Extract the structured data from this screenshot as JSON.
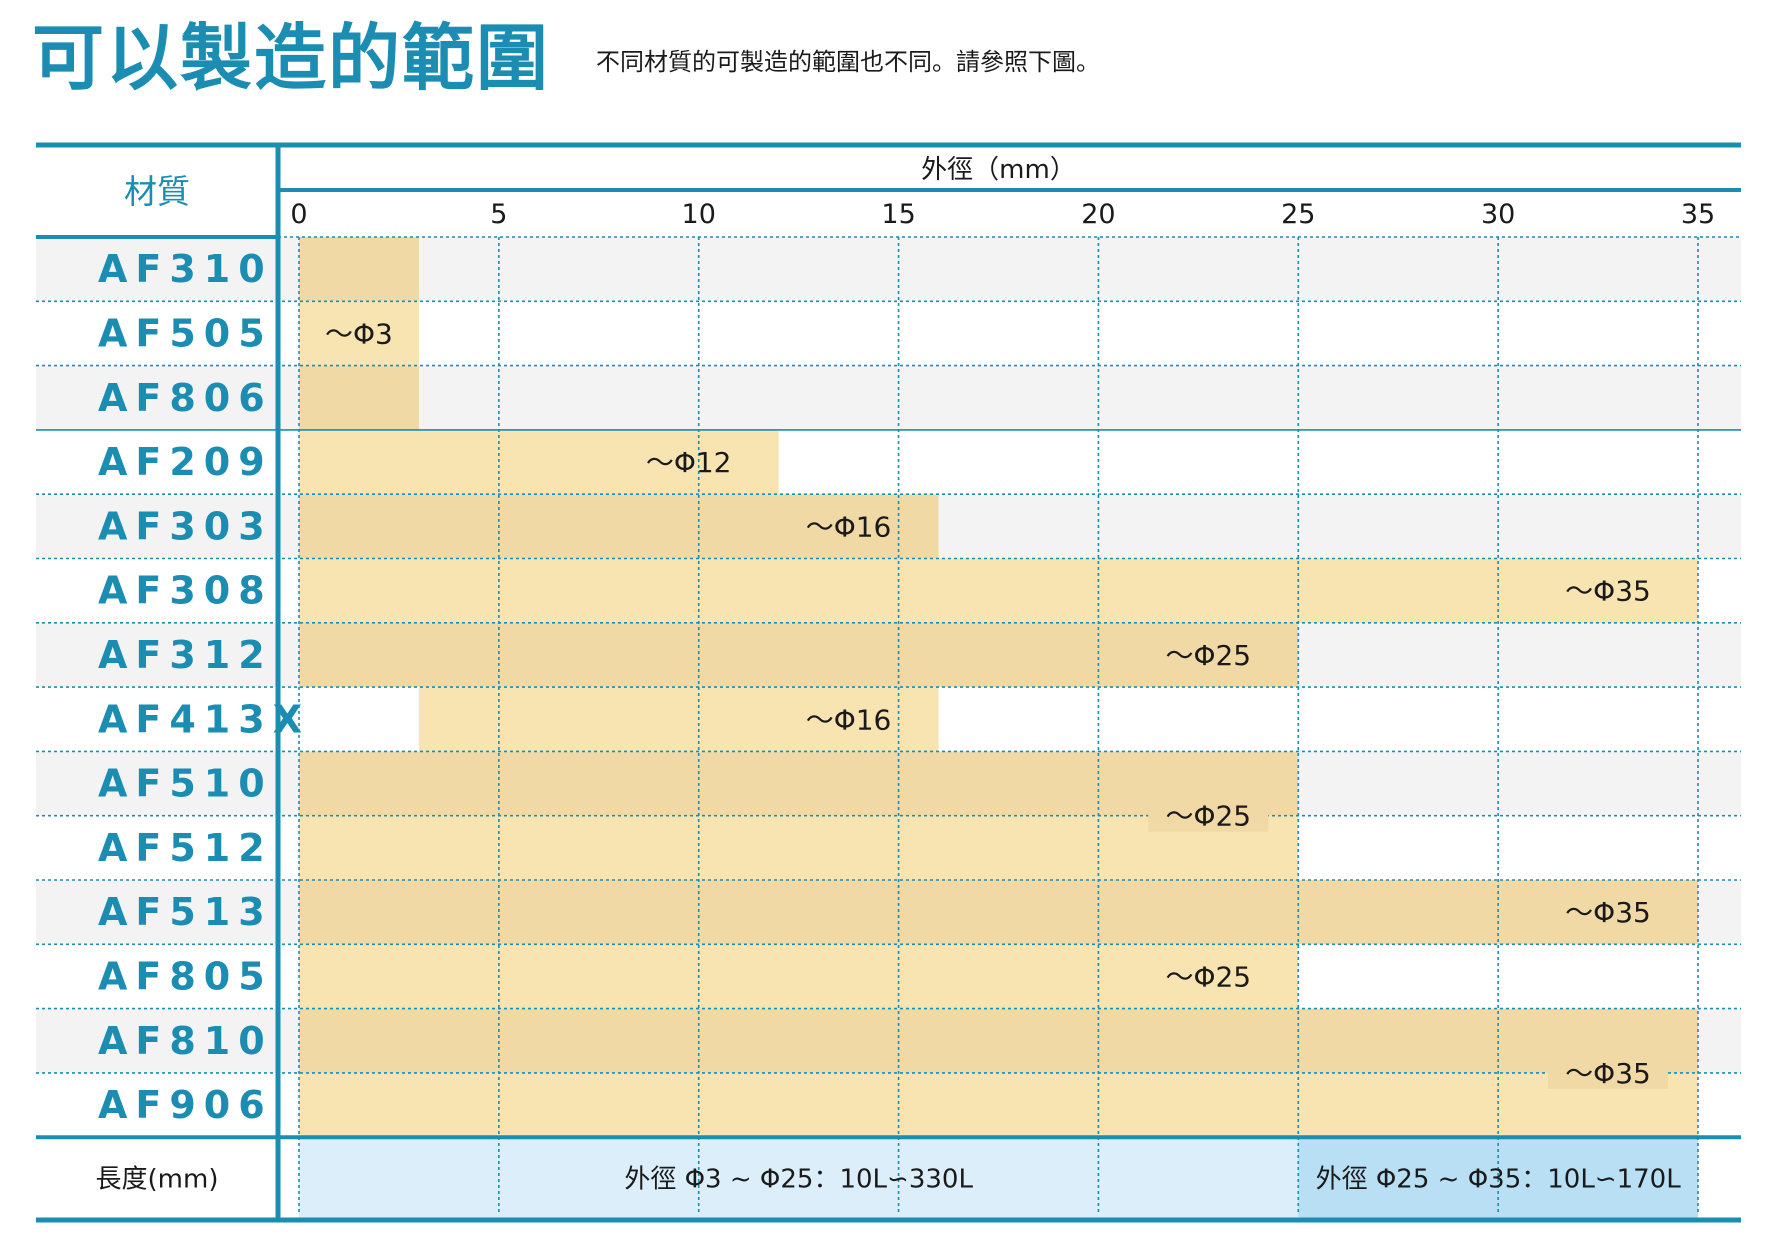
{
  "header": {
    "title": "可以製造的範圍",
    "subtitle": "不同材質的可製造的範圍也不同。請參照下圖。"
  },
  "colors": {
    "accent": "#1b8db3",
    "bar_light": "#f8e4b1",
    "bar_dark": "#f1d9a6",
    "row_shade": "#f3f3f3",
    "length_light": "#dbeefa",
    "length_dark": "#b9dff4"
  },
  "chart_data": {
    "type": "bar",
    "orientation": "horizontal",
    "title": "可以製造的範圍",
    "xlabel": "外徑（mm）",
    "ylabel": "材質",
    "xlim": [
      0,
      35
    ],
    "xticks": [
      0,
      5,
      10,
      15,
      20,
      25,
      30,
      35
    ],
    "grid": true,
    "categories": [
      "AF310",
      "AF505",
      "AF806",
      "AF209",
      "AF303",
      "AF308",
      "AF312",
      "AF413X",
      "AF510",
      "AF512",
      "AF513",
      "AF805",
      "AF810",
      "AF906"
    ],
    "bars": [
      {
        "rows": [
          "AF310",
          "AF505",
          "AF806"
        ],
        "start": 0,
        "end": 3,
        "label": "～Φ3"
      },
      {
        "rows": [
          "AF209"
        ],
        "start": 0,
        "end": 12,
        "label": "～Φ12"
      },
      {
        "rows": [
          "AF303"
        ],
        "start": 0,
        "end": 16,
        "label": "～Φ16"
      },
      {
        "rows": [
          "AF308"
        ],
        "start": 0,
        "end": 35,
        "label": "～Φ35"
      },
      {
        "rows": [
          "AF312"
        ],
        "start": 0,
        "end": 25,
        "label": "～Φ25"
      },
      {
        "rows": [
          "AF413X"
        ],
        "start": 3,
        "end": 16,
        "label": "～Φ16"
      },
      {
        "rows": [
          "AF510",
          "AF512"
        ],
        "start": 0,
        "end": 25,
        "label": "～Φ25"
      },
      {
        "rows": [
          "AF513"
        ],
        "start": 0,
        "end": 35,
        "label": "～Φ35"
      },
      {
        "rows": [
          "AF805"
        ],
        "start": 0,
        "end": 25,
        "label": "～Φ25"
      },
      {
        "rows": [
          "AF810",
          "AF906"
        ],
        "start": 0,
        "end": 35,
        "label": "～Φ35"
      }
    ],
    "length_row": {
      "label": "長度(mm)",
      "segments": [
        {
          "start": 0,
          "end": 25,
          "text": "外徑  Φ3 ~ Φ25：10L∽330L"
        },
        {
          "start": 25,
          "end": 35,
          "text": "外徑  Φ25 ~ Φ35：10L∽170L"
        }
      ]
    }
  }
}
